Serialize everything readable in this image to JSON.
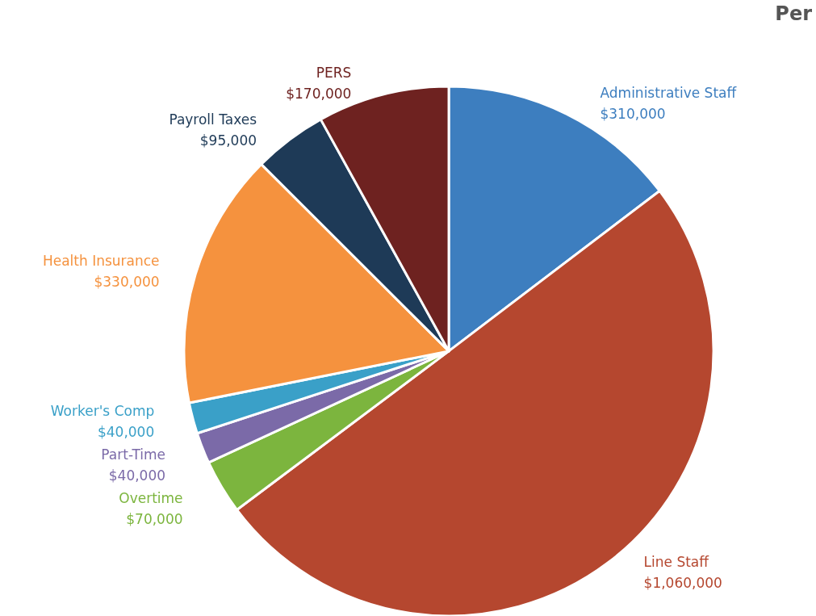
{
  "chart_data": {
    "type": "pie",
    "title": "Per",
    "categories": [
      "Administrative Staff",
      "Line Staff",
      "Overtime",
      "Part-Time",
      "Worker's Comp",
      "Health Insurance",
      "Payroll Taxes",
      "PERS"
    ],
    "values": [
      310000,
      1060000,
      70000,
      40000,
      40000,
      330000,
      95000,
      170000
    ],
    "value_labels": [
      "$310,000",
      "$1,060,000",
      "$70,000",
      "$40,000",
      "$40,000",
      "$330,000",
      "$95,000",
      "$170,000"
    ],
    "colors": [
      "#3d7ebf",
      "#b5472f",
      "#7cb53e",
      "#7b6aa8",
      "#3aa0c8",
      "#f5923e",
      "#1e3a57",
      "#6e2220"
    ],
    "legend": false
  }
}
